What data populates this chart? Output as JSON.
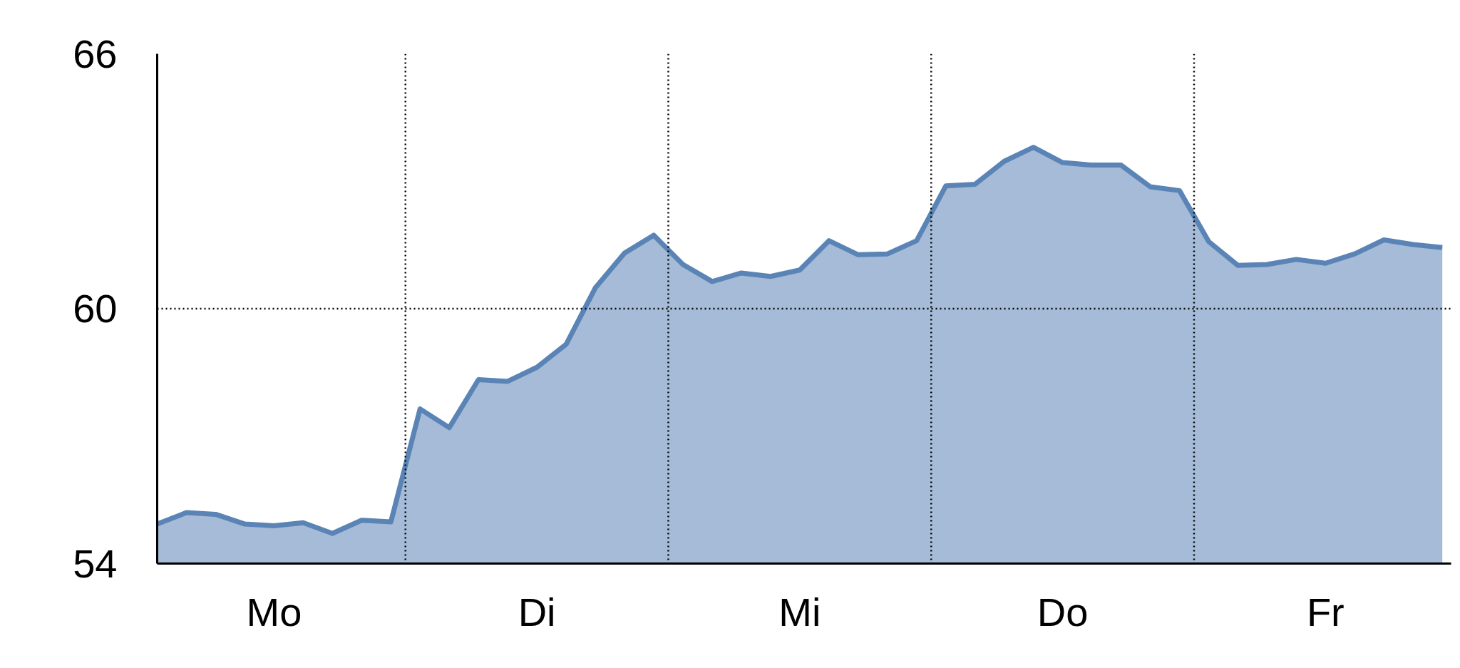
{
  "chart_data": {
    "type": "area",
    "categories": [
      null,
      null,
      null,
      null,
      "Mo",
      null,
      null,
      null,
      null,
      null,
      null,
      null,
      null,
      "Di",
      null,
      null,
      null,
      null,
      null,
      null,
      null,
      null,
      "Mi",
      null,
      null,
      null,
      null,
      null,
      null,
      null,
      null,
      "Do",
      null,
      null,
      null,
      null,
      null,
      null,
      null,
      null,
      "Fr",
      null,
      null,
      null,
      null
    ],
    "series": [
      {
        "color": "#5b84b6",
        "values": [
          54.93,
          55.2,
          55.16,
          54.93,
          54.89,
          54.96,
          54.71,
          55.02,
          54.98,
          57.64,
          57.2,
          58.33,
          58.29,
          58.62,
          59.16,
          60.49,
          61.31,
          61.73,
          61.04,
          60.64,
          60.84,
          60.76,
          60.91,
          61.6,
          61.27,
          61.29,
          61.6,
          62.89,
          62.93,
          63.47,
          63.8,
          63.44,
          63.38,
          63.38,
          62.87,
          62.78,
          61.58,
          61.02,
          61.04,
          61.16,
          61.07,
          61.29,
          61.62,
          61.51,
          61.44
        ]
      }
    ],
    "ylim": [
      54,
      66
    ],
    "yticks": [
      54,
      60,
      66
    ],
    "grid": false,
    "ref_lines": [
      {
        "axis": "y",
        "value": 60,
        "line_style": "dotted",
        "color": "#000000"
      }
    ]
  }
}
